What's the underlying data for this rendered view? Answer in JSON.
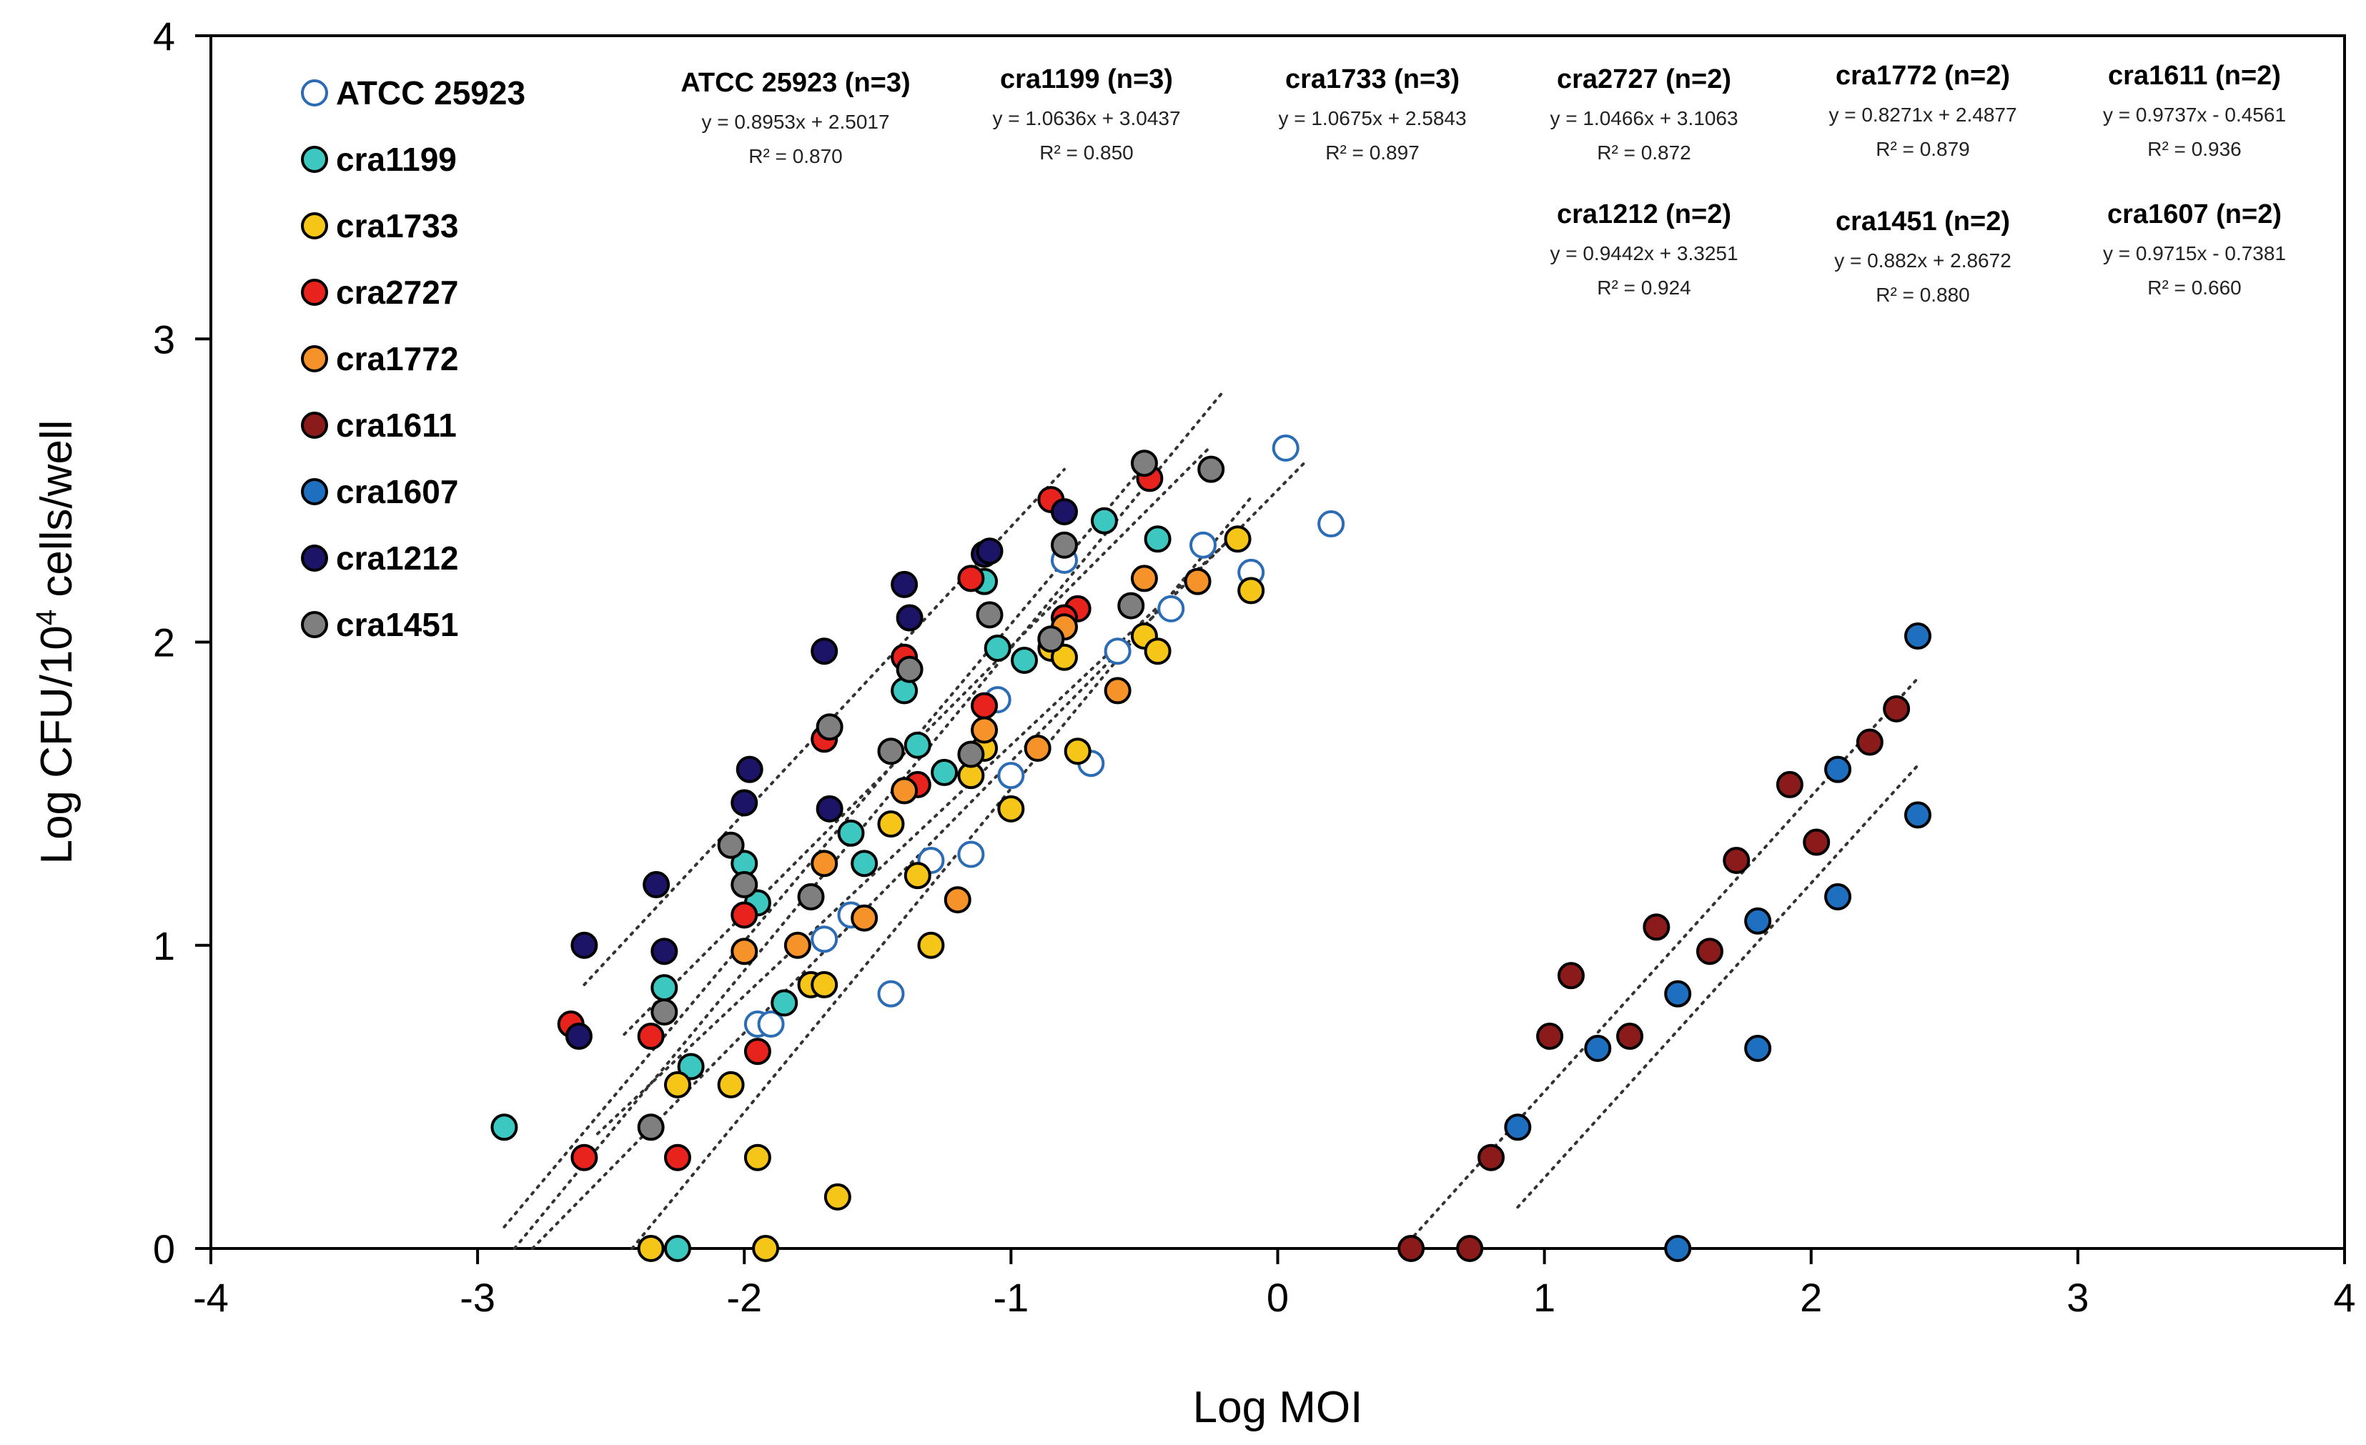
{
  "chart_data": {
    "type": "scatter",
    "title": "",
    "xlabel": "Log MOI",
    "ylabel_parts": {
      "main": "Log CFU/10",
      "superscript": "4",
      "suffix": " cells/well"
    },
    "xlim": [
      -4,
      4
    ],
    "ylim": [
      0,
      4
    ],
    "xticks": [
      "-4",
      "-3",
      "-2",
      "-1",
      "0",
      "1",
      "2",
      "3",
      "4"
    ],
    "yticks": [
      "0",
      "1",
      "2",
      "3",
      "4"
    ],
    "legend_position": "top-left",
    "series": [
      {
        "name": "ATCC 25923",
        "color": "#ffffff",
        "stroke": "#2b6cb5",
        "fit": {
          "slope": 0.8953,
          "intercept": 2.5017,
          "xrange": [
            -2.8,
            0.1
          ]
        },
        "points": [
          [
            -1.95,
            0.74
          ],
          [
            -1.9,
            0.74
          ],
          [
            -1.7,
            1.02
          ],
          [
            -1.6,
            1.1
          ],
          [
            -1.45,
            0.84
          ],
          [
            -1.3,
            1.28
          ],
          [
            -1.15,
            1.3
          ],
          [
            -1.05,
            1.81
          ],
          [
            -1.0,
            1.56
          ],
          [
            -0.8,
            2.27
          ],
          [
            -0.7,
            1.6
          ],
          [
            -0.6,
            1.97
          ],
          [
            -0.4,
            2.11
          ],
          [
            -0.28,
            2.32
          ],
          [
            -0.1,
            2.23
          ],
          [
            0.03,
            2.64
          ],
          [
            0.2,
            2.39
          ]
        ]
      },
      {
        "name": "cra1199",
        "color": "#3cc8c0",
        "stroke": "#000000",
        "fit": {
          "slope": 1.0636,
          "intercept": 3.0437,
          "xrange": [
            -2.9,
            -0.2
          ]
        },
        "points": [
          [
            -2.9,
            0.4
          ],
          [
            -2.3,
            0.86
          ],
          [
            -2.25,
            0.0
          ],
          [
            -2.2,
            0.6
          ],
          [
            -2.0,
            1.27
          ],
          [
            -1.95,
            1.14
          ],
          [
            -1.85,
            0.81
          ],
          [
            -1.6,
            1.37
          ],
          [
            -1.55,
            1.27
          ],
          [
            -1.4,
            1.84
          ],
          [
            -1.35,
            1.66
          ],
          [
            -1.25,
            1.57
          ],
          [
            -1.1,
            2.2
          ],
          [
            -1.05,
            1.98
          ],
          [
            -0.95,
            1.94
          ],
          [
            -0.65,
            2.4
          ],
          [
            -0.45,
            2.34
          ]
        ]
      },
      {
        "name": "cra1733",
        "color": "#f5c518",
        "stroke": "#000000",
        "fit": {
          "slope": 1.0675,
          "intercept": 2.5843,
          "xrange": [
            -2.45,
            -0.1
          ]
        },
        "points": [
          [
            -2.35,
            0.0
          ],
          [
            -2.25,
            0.54
          ],
          [
            -2.05,
            0.54
          ],
          [
            -1.95,
            0.3
          ],
          [
            -1.92,
            0.0
          ],
          [
            -1.75,
            0.87
          ],
          [
            -1.7,
            0.87
          ],
          [
            -1.65,
            0.17
          ],
          [
            -1.45,
            1.4
          ],
          [
            -1.35,
            1.23
          ],
          [
            -1.3,
            1.0
          ],
          [
            -1.15,
            1.56
          ],
          [
            -1.1,
            1.65
          ],
          [
            -1.0,
            1.45
          ],
          [
            -0.85,
            1.98
          ],
          [
            -0.8,
            1.95
          ],
          [
            -0.75,
            1.64
          ],
          [
            -0.5,
            2.02
          ],
          [
            -0.45,
            1.97
          ],
          [
            -0.15,
            2.34
          ],
          [
            -0.1,
            2.17
          ]
        ]
      },
      {
        "name": "cra2727",
        "color": "#e8221c",
        "stroke": "#000000",
        "fit": {
          "slope": 1.0466,
          "intercept": 3.1063,
          "xrange": [
            -2.9,
            -0.5
          ]
        },
        "points": [
          [
            -2.65,
            0.74
          ],
          [
            -2.6,
            0.3
          ],
          [
            -2.35,
            0.7
          ],
          [
            -2.25,
            0.3
          ],
          [
            -2.0,
            1.1
          ],
          [
            -1.95,
            0.65
          ],
          [
            -1.7,
            1.68
          ],
          [
            -1.4,
            1.95
          ],
          [
            -1.35,
            1.53
          ],
          [
            -1.15,
            2.21
          ],
          [
            -1.1,
            1.79
          ],
          [
            -0.85,
            2.47
          ],
          [
            -0.75,
            2.11
          ],
          [
            -0.8,
            2.08
          ],
          [
            -0.48,
            2.54
          ]
        ]
      },
      {
        "name": "cra1772",
        "color": "#f5922a",
        "stroke": "#000000",
        "fit": {
          "slope": 0.8271,
          "intercept": 2.4877,
          "xrange": [
            -2.55,
            -0.2
          ]
        },
        "points": [
          [
            -2.0,
            0.98
          ],
          [
            -1.8,
            1.0
          ],
          [
            -1.7,
            1.27
          ],
          [
            -1.55,
            1.09
          ],
          [
            -1.4,
            1.51
          ],
          [
            -1.2,
            1.15
          ],
          [
            -1.1,
            1.71
          ],
          [
            -0.9,
            1.65
          ],
          [
            -0.8,
            2.05
          ],
          [
            -0.6,
            1.84
          ],
          [
            -0.5,
            2.21
          ],
          [
            -0.3,
            2.2
          ]
        ]
      },
      {
        "name": "cra1611",
        "color": "#8b1a1a",
        "stroke": "#000000",
        "fit": {
          "slope": 0.9737,
          "intercept": -0.4561,
          "xrange": [
            0.45,
            2.4
          ]
        },
        "points": [
          [
            0.5,
            0.0
          ],
          [
            0.72,
            0.0
          ],
          [
            0.8,
            0.3
          ],
          [
            1.02,
            0.7
          ],
          [
            1.1,
            0.9
          ],
          [
            1.32,
            0.7
          ],
          [
            1.42,
            1.06
          ],
          [
            1.62,
            0.98
          ],
          [
            1.72,
            1.28
          ],
          [
            1.92,
            1.53
          ],
          [
            2.02,
            1.34
          ],
          [
            2.22,
            1.67
          ],
          [
            2.32,
            1.78
          ]
        ]
      },
      {
        "name": "cra1607",
        "color": "#1e6fc0",
        "stroke": "#000000",
        "fit": {
          "slope": 0.9715,
          "intercept": -0.7381,
          "xrange": [
            0.9,
            2.4
          ]
        },
        "points": [
          [
            0.9,
            0.4
          ],
          [
            1.2,
            0.66
          ],
          [
            1.5,
            0.84
          ],
          [
            1.5,
            0.0
          ],
          [
            1.8,
            1.08
          ],
          [
            1.8,
            0.66
          ],
          [
            2.1,
            1.58
          ],
          [
            2.1,
            1.16
          ],
          [
            2.4,
            2.02
          ],
          [
            2.4,
            1.43
          ]
        ]
      },
      {
        "name": "cra1212",
        "color": "#1c1466",
        "stroke": "#000000",
        "fit": {
          "slope": 0.9442,
          "intercept": 3.3251,
          "xrange": [
            -2.6,
            -0.8
          ]
        },
        "points": [
          [
            -2.6,
            1.0
          ],
          [
            -2.62,
            0.7
          ],
          [
            -2.33,
            1.2
          ],
          [
            -2.3,
            0.98
          ],
          [
            -2.0,
            1.47
          ],
          [
            -1.98,
            1.58
          ],
          [
            -1.7,
            1.97
          ],
          [
            -1.68,
            1.45
          ],
          [
            -1.4,
            2.19
          ],
          [
            -1.38,
            2.08
          ],
          [
            -1.1,
            2.29
          ],
          [
            -1.08,
            2.3
          ],
          [
            -0.8,
            2.43
          ]
        ]
      },
      {
        "name": "cra1451",
        "color": "#7f7f7f",
        "stroke": "#000000",
        "fit": {
          "slope": 0.882,
          "intercept": 2.8672,
          "xrange": [
            -2.45,
            -0.25
          ]
        },
        "points": [
          [
            -2.35,
            0.4
          ],
          [
            -2.3,
            0.78
          ],
          [
            -2.05,
            1.33
          ],
          [
            -2.0,
            1.2
          ],
          [
            -1.75,
            1.16
          ],
          [
            -1.68,
            1.72
          ],
          [
            -1.45,
            1.64
          ],
          [
            -1.38,
            1.91
          ],
          [
            -1.15,
            1.63
          ],
          [
            -1.08,
            2.09
          ],
          [
            -0.85,
            2.01
          ],
          [
            -0.8,
            2.32
          ],
          [
            -0.55,
            2.12
          ],
          [
            -0.5,
            2.59
          ],
          [
            -0.25,
            2.57
          ]
        ]
      }
    ],
    "equations": [
      {
        "label": "ATCC 25923 (n=3)",
        "eq": "y = 0.8953x + 2.5017",
        "r2": "R² = 0.870"
      },
      {
        "label": "cra1199 (n=3)",
        "eq": "y = 1.0636x + 3.0437",
        "r2": "R² = 0.850"
      },
      {
        "label": "cra1733 (n=3)",
        "eq": "y = 1.0675x + 2.5843",
        "r2": "R² = 0.897"
      },
      {
        "label": "cra2727 (n=2)",
        "eq": "y = 1.0466x + 3.1063",
        "r2": "R² = 0.872"
      },
      {
        "label": "cra1772 (n=2)",
        "eq": "y = 0.8271x + 2.4877",
        "r2": "R² = 0.879"
      },
      {
        "label": "cra1611 (n=2)",
        "eq": "y = 0.9737x - 0.4561",
        "r2": "R² = 0.936"
      },
      {
        "label": "cra1212 (n=2)",
        "eq": "y = 0.9442x + 3.3251",
        "r2": "R² = 0.924"
      },
      {
        "label": "cra1451 (n=2)",
        "eq": "y = 0.882x + 2.8672",
        "r2": "R² = 0.880"
      },
      {
        "label": "cra1607 (n=2)",
        "eq": "y = 0.9715x - 0.7381",
        "r2": "R² = 0.660"
      }
    ]
  }
}
